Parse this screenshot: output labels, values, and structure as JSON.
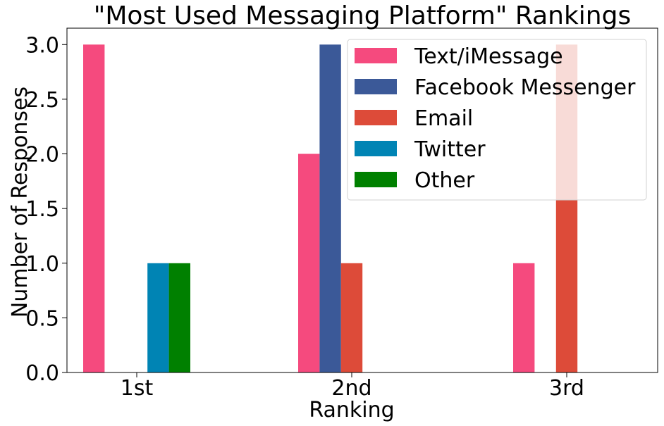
{
  "chart_data": {
    "type": "bar",
    "title": "\"Most Used Messaging Platform\" Rankings",
    "xlabel": "Ranking",
    "ylabel": "Number of Responses",
    "categories": [
      "1st",
      "2nd",
      "3rd"
    ],
    "ylim": [
      0,
      3.15
    ],
    "yticks": [
      "0.0",
      "0.5",
      "1.0",
      "1.5",
      "2.0",
      "2.5",
      "3.0"
    ],
    "grid": false,
    "legend_position": "top-right",
    "series": [
      {
        "name": "Text/iMessage",
        "color": "#f54a7e",
        "values": [
          3,
          2,
          1
        ]
      },
      {
        "name": "Facebook Messenger",
        "color": "#3b5998",
        "values": [
          0,
          3,
          0
        ]
      },
      {
        "name": "Email",
        "color": "#dd4b39",
        "values": [
          0,
          1,
          3
        ]
      },
      {
        "name": "Twitter",
        "color": "#0084b4",
        "values": [
          1,
          0,
          0
        ]
      },
      {
        "name": "Other",
        "color": "#008000",
        "values": [
          1,
          0,
          0
        ]
      }
    ]
  }
}
